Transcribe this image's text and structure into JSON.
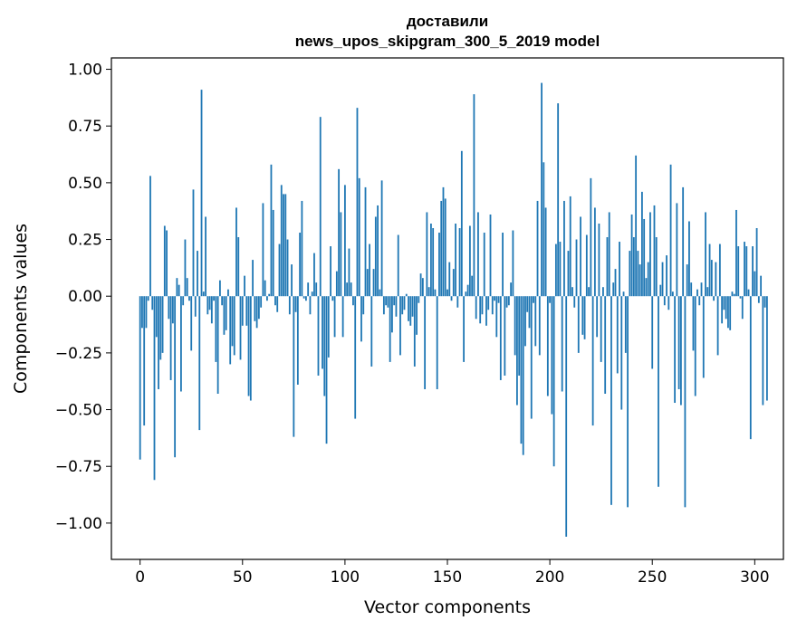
{
  "chart_data": {
    "type": "bar",
    "title_lines": [
      "доставили",
      "news_upos_skipgram_300_5_2019 model"
    ],
    "xlabel": "Vector components",
    "ylabel": "Components values",
    "xlim": [
      -14,
      314
    ],
    "ylim": [
      -1.16,
      1.05
    ],
    "xticks": [
      0,
      50,
      100,
      150,
      200,
      250,
      300
    ],
    "yticks": [
      1.0,
      0.75,
      0.5,
      0.25,
      0.0,
      -0.25,
      -0.5,
      -0.75,
      -1.0
    ],
    "ytick_labels": [
      "1.00",
      "0.75",
      "0.50",
      "0.25",
      "0.00",
      "−0.25",
      "−0.50",
      "−0.75",
      "−1.00"
    ],
    "grid": false,
    "bar_color": "#1f77b4",
    "values": [
      -0.72,
      -0.14,
      -0.57,
      -0.14,
      -0.02,
      0.53,
      -0.06,
      -0.81,
      -0.18,
      -0.41,
      -0.28,
      -0.25,
      0.31,
      0.29,
      -0.1,
      -0.37,
      -0.12,
      -0.71,
      0.08,
      0.05,
      -0.42,
      -0.04,
      0.25,
      0.08,
      -0.02,
      -0.24,
      0.47,
      -0.09,
      0.2,
      -0.59,
      0.91,
      0.02,
      0.35,
      -0.08,
      -0.06,
      -0.12,
      -0.02,
      -0.29,
      -0.43,
      0.07,
      -0.04,
      -0.17,
      -0.15,
      0.03,
      -0.3,
      -0.22,
      -0.26,
      0.39,
      0.26,
      -0.28,
      -0.13,
      0.09,
      -0.13,
      -0.44,
      -0.46,
      0.16,
      -0.11,
      -0.14,
      -0.1,
      -0.05,
      0.41,
      0.07,
      -0.02,
      0.01,
      0.58,
      0.38,
      -0.04,
      -0.07,
      0.23,
      0.49,
      0.45,
      0.45,
      0.25,
      -0.08,
      0.14,
      -0.62,
      -0.07,
      -0.39,
      0.28,
      0.42,
      -0.01,
      -0.02,
      0.06,
      -0.08,
      0.02,
      0.19,
      0.06,
      -0.35,
      0.79,
      -0.32,
      -0.44,
      -0.65,
      -0.27,
      0.22,
      -0.02,
      -0.18,
      0.11,
      0.56,
      0.37,
      -0.18,
      0.49,
      0.06,
      0.21,
      0.06,
      -0.04,
      -0.54,
      0.83,
      0.52,
      -0.2,
      -0.08,
      0.48,
      0.12,
      0.23,
      -0.31,
      0.12,
      0.35,
      0.4,
      0.03,
      0.51,
      -0.08,
      -0.04,
      -0.05,
      -0.29,
      -0.16,
      -0.04,
      -0.09,
      0.27,
      -0.26,
      -0.08,
      -0.06,
      0.01,
      -0.11,
      -0.13,
      -0.09,
      -0.31,
      -0.17,
      -0.03,
      0.1,
      0.08,
      -0.41,
      0.37,
      0.04,
      0.32,
      0.3,
      0.03,
      -0.41,
      0.28,
      0.42,
      0.48,
      0.43,
      0.03,
      0.15,
      -0.02,
      0.12,
      0.32,
      -0.05,
      0.3,
      0.64,
      -0.29,
      0.02,
      0.05,
      0.31,
      0.09,
      0.89,
      -0.1,
      0.37,
      -0.12,
      -0.08,
      0.28,
      -0.13,
      -0.06,
      0.36,
      -0.08,
      -0.02,
      -0.18,
      -0.03,
      -0.37,
      0.28,
      -0.35,
      -0.05,
      -0.04,
      0.06,
      0.29,
      -0.26,
      -0.48,
      -0.35,
      -0.65,
      -0.7,
      -0.22,
      -0.07,
      -0.14,
      -0.54,
      -0.03,
      -0.22,
      0.42,
      -0.26,
      0.94,
      0.59,
      0.39,
      -0.44,
      -0.03,
      -0.52,
      -0.75,
      0.23,
      0.85,
      0.24,
      -0.42,
      0.42,
      -1.06,
      0.2,
      0.44,
      0.04,
      -0.05,
      0.25,
      -0.25,
      0.35,
      -0.17,
      -0.19,
      0.27,
      0.04,
      0.52,
      -0.57,
      0.39,
      -0.18,
      0.32,
      -0.29,
      0.04,
      -0.43,
      0.26,
      0.37,
      -0.92,
      0.06,
      0.12,
      -0.34,
      0.24,
      -0.5,
      0.02,
      -0.25,
      -0.93,
      0.2,
      0.36,
      0.26,
      0.62,
      0.2,
      0.14,
      0.46,
      0.34,
      0.08,
      0.15,
      0.37,
      -0.32,
      0.4,
      0.26,
      -0.84,
      0.05,
      0.15,
      -0.04,
      0.18,
      -0.06,
      0.58,
      0.02,
      -0.47,
      0.41,
      -0.41,
      -0.48,
      0.48,
      -0.93,
      0.14,
      0.33,
      0.06,
      -0.24,
      -0.44,
      0.03,
      -0.04,
      0.06,
      -0.36,
      0.37,
      0.04,
      0.23,
      0.16,
      -0.02,
      0.15,
      -0.26,
      0.23,
      -0.12,
      -0.06,
      -0.1,
      -0.14,
      -0.15,
      0.02,
      0.01,
      0.38,
      0.22,
      -0.01,
      -0.1,
      0.24,
      0.22,
      0.03,
      -0.63,
      0.22,
      0.11,
      0.3,
      -0.03,
      0.09,
      -0.48,
      -0.05,
      -0.46
    ]
  }
}
